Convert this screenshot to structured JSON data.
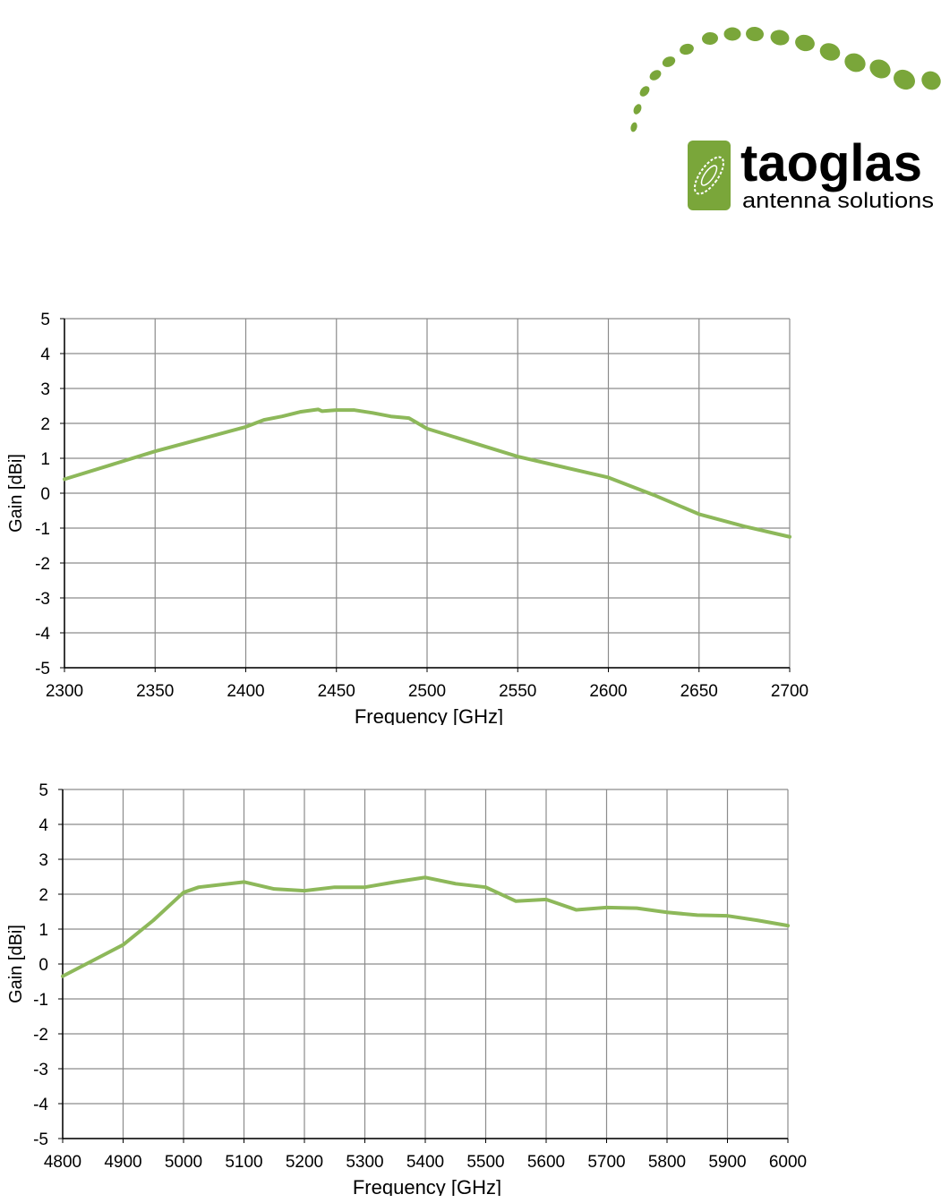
{
  "logo": {
    "brand": "taoglas",
    "tagline": "antenna solutions",
    "color": "#7aa63a"
  },
  "chart_data": [
    {
      "type": "line",
      "xlabel": "Frequency [GHz]",
      "ylabel": "Gain [dBi]",
      "xlim": [
        2300,
        2700
      ],
      "ylim": [
        -5,
        5
      ],
      "xticks": [
        2300,
        2350,
        2400,
        2450,
        2500,
        2550,
        2600,
        2650,
        2700
      ],
      "yticks": [
        5,
        4,
        3,
        2,
        1,
        0,
        -1,
        -2,
        -3,
        -4,
        -5
      ],
      "grid": true,
      "line_color": "#8db85a",
      "series": [
        {
          "x": [
            2300,
            2325,
            2350,
            2375,
            2400,
            2410,
            2420,
            2430,
            2440,
            2442,
            2450,
            2460,
            2470,
            2480,
            2490,
            2500,
            2525,
            2550,
            2575,
            2600,
            2625,
            2650,
            2675,
            2700
          ],
          "y": [
            0.4,
            0.8,
            1.2,
            1.55,
            1.9,
            2.1,
            2.2,
            2.33,
            2.4,
            2.35,
            2.38,
            2.38,
            2.3,
            2.2,
            2.15,
            1.85,
            1.45,
            1.05,
            0.75,
            0.45,
            -0.05,
            -0.6,
            -0.95,
            -1.25
          ]
        }
      ]
    },
    {
      "type": "line",
      "xlabel": "Frequency [GHz]",
      "ylabel": "Gain [dBi]",
      "xlim": [
        4800,
        6000
      ],
      "ylim": [
        -5,
        5
      ],
      "xticks": [
        4800,
        4900,
        5000,
        5100,
        5200,
        5300,
        5400,
        5500,
        5600,
        5700,
        5800,
        5900,
        6000
      ],
      "yticks": [
        5,
        4,
        3,
        2,
        1,
        0,
        -1,
        -2,
        -3,
        -4,
        -5
      ],
      "grid": true,
      "line_color": "#8db85a",
      "series": [
        {
          "x": [
            4800,
            4850,
            4900,
            4950,
            5000,
            5025,
            5050,
            5100,
            5150,
            5200,
            5250,
            5300,
            5350,
            5400,
            5450,
            5500,
            5550,
            5600,
            5650,
            5700,
            5750,
            5800,
            5850,
            5900,
            5950,
            6000
          ],
          "y": [
            -0.35,
            0.1,
            0.55,
            1.25,
            2.05,
            2.2,
            2.25,
            2.35,
            2.15,
            2.1,
            2.2,
            2.2,
            2.35,
            2.48,
            2.3,
            2.2,
            1.8,
            1.85,
            1.55,
            1.62,
            1.6,
            1.48,
            1.4,
            1.38,
            1.25,
            1.1
          ]
        }
      ]
    }
  ]
}
